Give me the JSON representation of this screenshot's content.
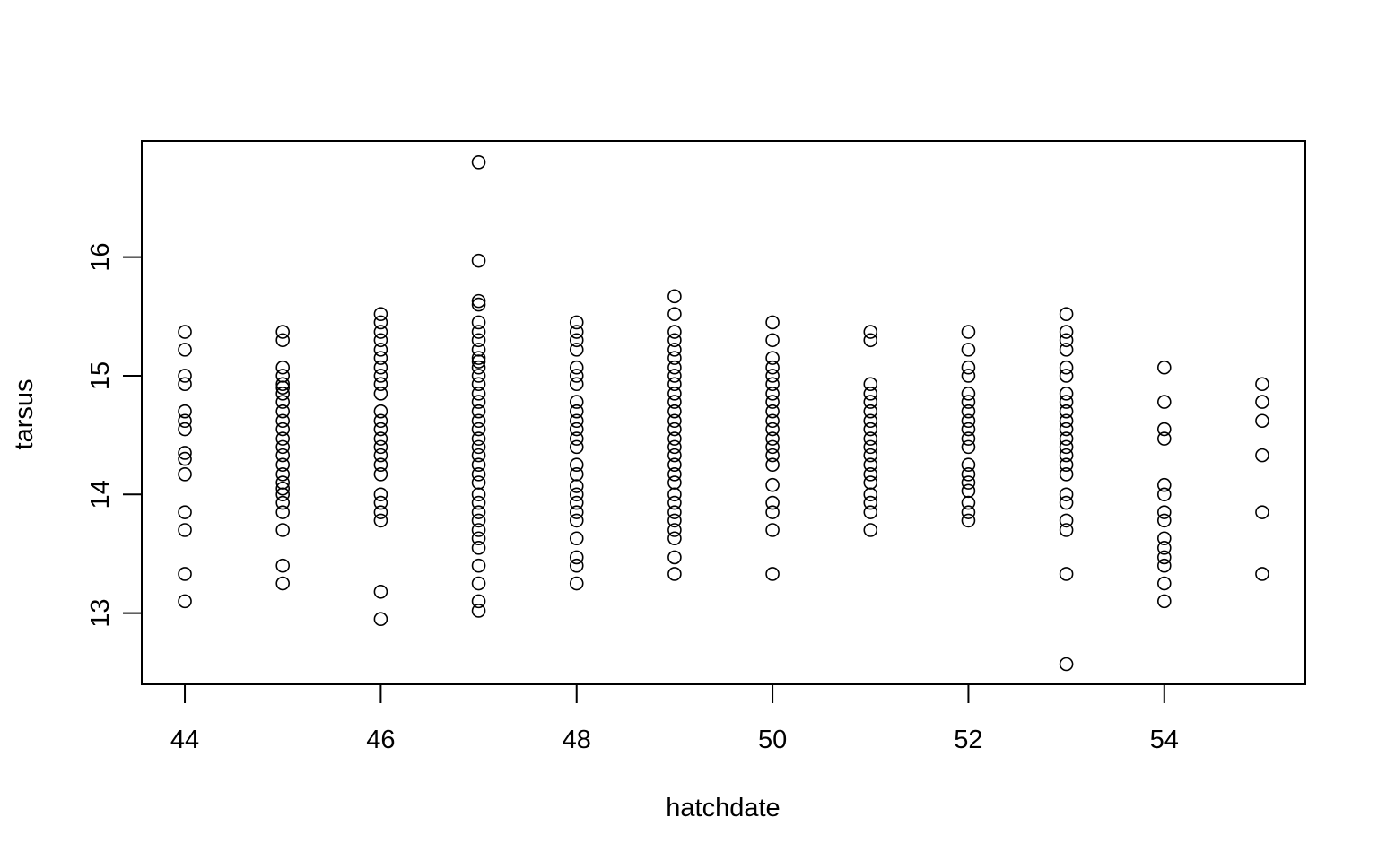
{
  "chart_data": {
    "type": "scatter",
    "title": "",
    "xlabel": "hatchdate",
    "ylabel": "tarsus",
    "xlim": [
      43.56,
      55.44
    ],
    "ylim": [
      12.4,
      16.98
    ],
    "xticks": [
      44,
      46,
      48,
      50,
      52,
      54
    ],
    "yticks": [
      13,
      14,
      15,
      16
    ],
    "xtick_labels": [
      "44",
      "46",
      "48",
      "50",
      "52",
      "54"
    ],
    "ytick_labels": [
      "13",
      "14",
      "15",
      "16"
    ],
    "grid": false,
    "legend": "none",
    "marker": "open-circle",
    "colors": {
      "marker": "#000000",
      "axis": "#000000",
      "background": "#ffffff"
    },
    "points": [
      [
        44,
        15.37
      ],
      [
        44,
        15.22
      ],
      [
        44,
        15.0
      ],
      [
        44,
        14.93
      ],
      [
        44,
        14.7
      ],
      [
        44,
        14.62
      ],
      [
        44,
        14.55
      ],
      [
        44,
        14.35
      ],
      [
        44,
        14.3
      ],
      [
        44,
        14.17
      ],
      [
        44,
        13.85
      ],
      [
        44,
        13.7
      ],
      [
        44,
        13.33
      ],
      [
        44,
        13.1
      ],
      [
        45,
        15.37
      ],
      [
        45,
        15.3
      ],
      [
        45,
        15.07
      ],
      [
        45,
        15.0
      ],
      [
        45,
        14.93
      ],
      [
        45,
        14.9
      ],
      [
        45,
        14.85
      ],
      [
        45,
        14.78
      ],
      [
        45,
        14.7
      ],
      [
        45,
        14.62
      ],
      [
        45,
        14.55
      ],
      [
        45,
        14.47
      ],
      [
        45,
        14.4
      ],
      [
        45,
        14.33
      ],
      [
        45,
        14.25
      ],
      [
        45,
        14.17
      ],
      [
        45,
        14.1
      ],
      [
        45,
        14.05
      ],
      [
        45,
        14.0
      ],
      [
        45,
        13.93
      ],
      [
        45,
        13.85
      ],
      [
        45,
        13.7
      ],
      [
        45,
        13.4
      ],
      [
        45,
        13.25
      ],
      [
        46,
        15.52
      ],
      [
        46,
        15.45
      ],
      [
        46,
        15.37
      ],
      [
        46,
        15.3
      ],
      [
        46,
        15.22
      ],
      [
        46,
        15.15
      ],
      [
        46,
        15.07
      ],
      [
        46,
        15.0
      ],
      [
        46,
        14.93
      ],
      [
        46,
        14.85
      ],
      [
        46,
        14.7
      ],
      [
        46,
        14.62
      ],
      [
        46,
        14.55
      ],
      [
        46,
        14.47
      ],
      [
        46,
        14.4
      ],
      [
        46,
        14.33
      ],
      [
        46,
        14.25
      ],
      [
        46,
        14.17
      ],
      [
        46,
        14.0
      ],
      [
        46,
        13.93
      ],
      [
        46,
        13.85
      ],
      [
        46,
        13.78
      ],
      [
        46,
        13.18
      ],
      [
        46,
        12.95
      ],
      [
        47,
        16.8
      ],
      [
        47,
        15.97
      ],
      [
        47,
        15.63
      ],
      [
        47,
        15.6
      ],
      [
        47,
        15.45
      ],
      [
        47,
        15.37
      ],
      [
        47,
        15.3
      ],
      [
        47,
        15.22
      ],
      [
        47,
        15.15
      ],
      [
        47,
        15.12
      ],
      [
        47,
        15.07
      ],
      [
        47,
        15.0
      ],
      [
        47,
        14.93
      ],
      [
        47,
        14.85
      ],
      [
        47,
        14.78
      ],
      [
        47,
        14.7
      ],
      [
        47,
        14.62
      ],
      [
        47,
        14.55
      ],
      [
        47,
        14.47
      ],
      [
        47,
        14.4
      ],
      [
        47,
        14.33
      ],
      [
        47,
        14.25
      ],
      [
        47,
        14.17
      ],
      [
        47,
        14.1
      ],
      [
        47,
        14.0
      ],
      [
        47,
        13.93
      ],
      [
        47,
        13.85
      ],
      [
        47,
        13.78
      ],
      [
        47,
        13.7
      ],
      [
        47,
        13.63
      ],
      [
        47,
        13.55
      ],
      [
        47,
        13.4
      ],
      [
        47,
        13.25
      ],
      [
        47,
        13.1
      ],
      [
        47,
        13.02
      ],
      [
        48,
        15.45
      ],
      [
        48,
        15.37
      ],
      [
        48,
        15.3
      ],
      [
        48,
        15.22
      ],
      [
        48,
        15.07
      ],
      [
        48,
        15.0
      ],
      [
        48,
        14.93
      ],
      [
        48,
        14.78
      ],
      [
        48,
        14.7
      ],
      [
        48,
        14.62
      ],
      [
        48,
        14.55
      ],
      [
        48,
        14.47
      ],
      [
        48,
        14.4
      ],
      [
        48,
        14.25
      ],
      [
        48,
        14.17
      ],
      [
        48,
        14.07
      ],
      [
        48,
        14.0
      ],
      [
        48,
        13.93
      ],
      [
        48,
        13.85
      ],
      [
        48,
        13.78
      ],
      [
        48,
        13.63
      ],
      [
        48,
        13.47
      ],
      [
        48,
        13.4
      ],
      [
        48,
        13.25
      ],
      [
        49,
        15.67
      ],
      [
        49,
        15.52
      ],
      [
        49,
        15.37
      ],
      [
        49,
        15.3
      ],
      [
        49,
        15.22
      ],
      [
        49,
        15.15
      ],
      [
        49,
        15.07
      ],
      [
        49,
        15.0
      ],
      [
        49,
        14.93
      ],
      [
        49,
        14.85
      ],
      [
        49,
        14.78
      ],
      [
        49,
        14.7
      ],
      [
        49,
        14.62
      ],
      [
        49,
        14.55
      ],
      [
        49,
        14.47
      ],
      [
        49,
        14.4
      ],
      [
        49,
        14.33
      ],
      [
        49,
        14.25
      ],
      [
        49,
        14.17
      ],
      [
        49,
        14.1
      ],
      [
        49,
        14.0
      ],
      [
        49,
        13.93
      ],
      [
        49,
        13.85
      ],
      [
        49,
        13.78
      ],
      [
        49,
        13.7
      ],
      [
        49,
        13.63
      ],
      [
        49,
        13.47
      ],
      [
        49,
        13.33
      ],
      [
        50,
        15.45
      ],
      [
        50,
        15.3
      ],
      [
        50,
        15.15
      ],
      [
        50,
        15.07
      ],
      [
        50,
        15.0
      ],
      [
        50,
        14.93
      ],
      [
        50,
        14.85
      ],
      [
        50,
        14.78
      ],
      [
        50,
        14.7
      ],
      [
        50,
        14.62
      ],
      [
        50,
        14.55
      ],
      [
        50,
        14.47
      ],
      [
        50,
        14.4
      ],
      [
        50,
        14.33
      ],
      [
        50,
        14.25
      ],
      [
        50,
        14.08
      ],
      [
        50,
        13.93
      ],
      [
        50,
        13.85
      ],
      [
        50,
        13.7
      ],
      [
        50,
        13.33
      ],
      [
        51,
        15.37
      ],
      [
        51,
        15.3
      ],
      [
        51,
        14.93
      ],
      [
        51,
        14.85
      ],
      [
        51,
        14.78
      ],
      [
        51,
        14.7
      ],
      [
        51,
        14.62
      ],
      [
        51,
        14.55
      ],
      [
        51,
        14.47
      ],
      [
        51,
        14.4
      ],
      [
        51,
        14.33
      ],
      [
        51,
        14.25
      ],
      [
        51,
        14.17
      ],
      [
        51,
        14.1
      ],
      [
        51,
        14.0
      ],
      [
        51,
        13.93
      ],
      [
        51,
        13.85
      ],
      [
        51,
        13.7
      ],
      [
        52,
        15.37
      ],
      [
        52,
        15.22
      ],
      [
        52,
        15.07
      ],
      [
        52,
        15.0
      ],
      [
        52,
        14.85
      ],
      [
        52,
        14.78
      ],
      [
        52,
        14.7
      ],
      [
        52,
        14.62
      ],
      [
        52,
        14.55
      ],
      [
        52,
        14.47
      ],
      [
        52,
        14.4
      ],
      [
        52,
        14.25
      ],
      [
        52,
        14.17
      ],
      [
        52,
        14.1
      ],
      [
        52,
        14.03
      ],
      [
        52,
        13.93
      ],
      [
        52,
        13.85
      ],
      [
        52,
        13.78
      ],
      [
        53,
        15.52
      ],
      [
        53,
        15.37
      ],
      [
        53,
        15.3
      ],
      [
        53,
        15.22
      ],
      [
        53,
        15.07
      ],
      [
        53,
        15.0
      ],
      [
        53,
        14.85
      ],
      [
        53,
        14.78
      ],
      [
        53,
        14.7
      ],
      [
        53,
        14.62
      ],
      [
        53,
        14.55
      ],
      [
        53,
        14.47
      ],
      [
        53,
        14.4
      ],
      [
        53,
        14.33
      ],
      [
        53,
        14.25
      ],
      [
        53,
        14.17
      ],
      [
        53,
        14.0
      ],
      [
        53,
        13.93
      ],
      [
        53,
        13.78
      ],
      [
        53,
        13.7
      ],
      [
        53,
        13.33
      ],
      [
        53,
        12.57
      ],
      [
        54,
        15.07
      ],
      [
        54,
        14.78
      ],
      [
        54,
        14.55
      ],
      [
        54,
        14.47
      ],
      [
        54,
        14.08
      ],
      [
        54,
        14.0
      ],
      [
        54,
        13.85
      ],
      [
        54,
        13.78
      ],
      [
        54,
        13.63
      ],
      [
        54,
        13.55
      ],
      [
        54,
        13.47
      ],
      [
        54,
        13.4
      ],
      [
        54,
        13.25
      ],
      [
        54,
        13.1
      ],
      [
        55,
        14.93
      ],
      [
        55,
        14.78
      ],
      [
        55,
        14.62
      ],
      [
        55,
        14.33
      ],
      [
        55,
        13.85
      ],
      [
        55,
        13.33
      ]
    ]
  }
}
